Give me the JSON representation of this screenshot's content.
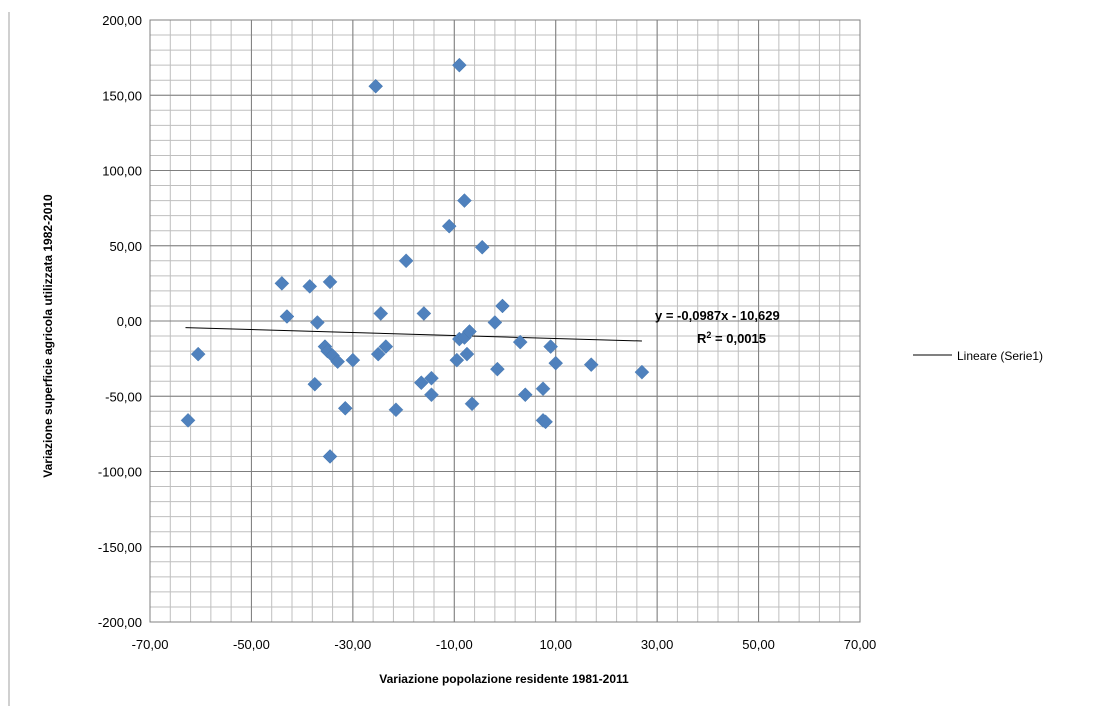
{
  "chart_data": {
    "type": "scatter",
    "xlabel": "Variazione popolazione residente 1981-2011",
    "ylabel": "Variazione superficie agricola utilizzata 1982-2010",
    "xlim": [
      -70,
      70
    ],
    "ylim": [
      -200,
      200
    ],
    "x_major_step": 20,
    "y_major_step": 50,
    "x_minor_step": 4,
    "y_minor_step": 10,
    "grid": true,
    "x_tick_labels": [
      "-70,00",
      "-50,00",
      "-30,00",
      "-10,00",
      "10,00",
      "30,00",
      "50,00",
      "70,00"
    ],
    "y_tick_labels": [
      "200,00",
      "150,00",
      "100,00",
      "50,00",
      "0,00",
      "-50,00",
      "-100,00",
      "-150,00",
      "-200,00"
    ],
    "marker_color": "#4f81bd",
    "trendline_color": "#000000",
    "points": [
      {
        "x": -62.5,
        "y": -66
      },
      {
        "x": -60.5,
        "y": -22
      },
      {
        "x": -44,
        "y": 25
      },
      {
        "x": -43,
        "y": 3
      },
      {
        "x": -38.5,
        "y": 23
      },
      {
        "x": -37.5,
        "y": -42
      },
      {
        "x": -37,
        "y": -1
      },
      {
        "x": -35.5,
        "y": -17
      },
      {
        "x": -35,
        "y": -20
      },
      {
        "x": -34.5,
        "y": 26
      },
      {
        "x": -34,
        "y": -23
      },
      {
        "x": -34.5,
        "y": -90
      },
      {
        "x": -33,
        "y": -27
      },
      {
        "x": -31.5,
        "y": -58
      },
      {
        "x": -30,
        "y": -26
      },
      {
        "x": -25.5,
        "y": 156
      },
      {
        "x": -25,
        "y": -22
      },
      {
        "x": -24.5,
        "y": 5
      },
      {
        "x": -23.5,
        "y": -17
      },
      {
        "x": -21.5,
        "y": -59
      },
      {
        "x": -19.5,
        "y": 40
      },
      {
        "x": -16.5,
        "y": -41
      },
      {
        "x": -16,
        "y": 5
      },
      {
        "x": -14.5,
        "y": -38
      },
      {
        "x": -14.5,
        "y": -49
      },
      {
        "x": -11,
        "y": 63
      },
      {
        "x": -9.5,
        "y": -26
      },
      {
        "x": -9,
        "y": 170
      },
      {
        "x": -9,
        "y": -12
      },
      {
        "x": -8,
        "y": 80
      },
      {
        "x": -8,
        "y": -11
      },
      {
        "x": -7.5,
        "y": -22
      },
      {
        "x": -7,
        "y": -7
      },
      {
        "x": -6.5,
        "y": -55
      },
      {
        "x": -4.5,
        "y": 49
      },
      {
        "x": -2,
        "y": -1
      },
      {
        "x": -1.5,
        "y": -32
      },
      {
        "x": -0.5,
        "y": 10
      },
      {
        "x": 3,
        "y": -14
      },
      {
        "x": 4,
        "y": -49
      },
      {
        "x": 7.5,
        "y": -45
      },
      {
        "x": 7.5,
        "y": -66
      },
      {
        "x": 8,
        "y": -67
      },
      {
        "x": 9,
        "y": -17
      },
      {
        "x": 10,
        "y": -28
      },
      {
        "x": 17,
        "y": -29
      },
      {
        "x": 27,
        "y": -34
      }
    ],
    "trendline": {
      "x_start": -63,
      "x_end": 27,
      "slope": -0.0987,
      "intercept": -10.629
    },
    "equation_label": "y = -0,0987x - 10,629",
    "r2_label_prefix": "R",
    "r2_label_sup": "2",
    "r2_label_value": " = 0,0015",
    "legend_entry": "Lineare (Serie1)",
    "legend_placement": "right"
  }
}
